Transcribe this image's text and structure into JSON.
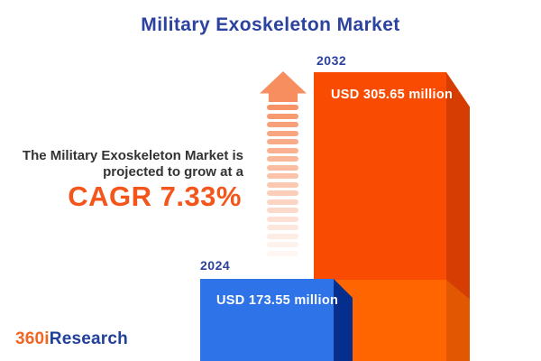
{
  "title": "Military Exoskeleton Market",
  "description": {
    "line1": "The Military Exoskeleton Market is",
    "line2": "projected to grow at a",
    "cagr": "CAGR 7.33%"
  },
  "logo": {
    "prefix": "360i",
    "suffix": "Research"
  },
  "chart_data": {
    "type": "bar",
    "title": "Military Exoskeleton Market",
    "categories": [
      "2024",
      "2032"
    ],
    "values": [
      173.55,
      305.65
    ],
    "value_labels": [
      "USD 173.55 million",
      "USD 305.65 million"
    ],
    "unit": "USD million",
    "cagr_percent": 7.33,
    "annotations": [
      "The Military Exoskeleton Market is projected to grow at a CAGR 7.33%"
    ],
    "orientation": "vertical",
    "axes": "none",
    "gridlines": false,
    "legend": "none",
    "notes": "2032 bar shows a lighter lower segment equal in height to the 2024 bar; striped fading arrow indicates growth"
  },
  "colors": {
    "background": "#ffffff",
    "title_blue": "#2b429e",
    "text_dark": "#333333",
    "cagr_orange": "#f4551a",
    "bar2024_face": "#2e73e7",
    "bar2024_side": "#052e8d",
    "bar2032_top_face": "#f94b02",
    "bar2032_top_side": "#d63d02",
    "bar2032_bottom_face": "#ff6501",
    "bar2032_bottom_side": "#e25701",
    "arrow_orange": "#f68e60",
    "logo_orange": "#f26522",
    "logo_blue": "#21409a"
  }
}
